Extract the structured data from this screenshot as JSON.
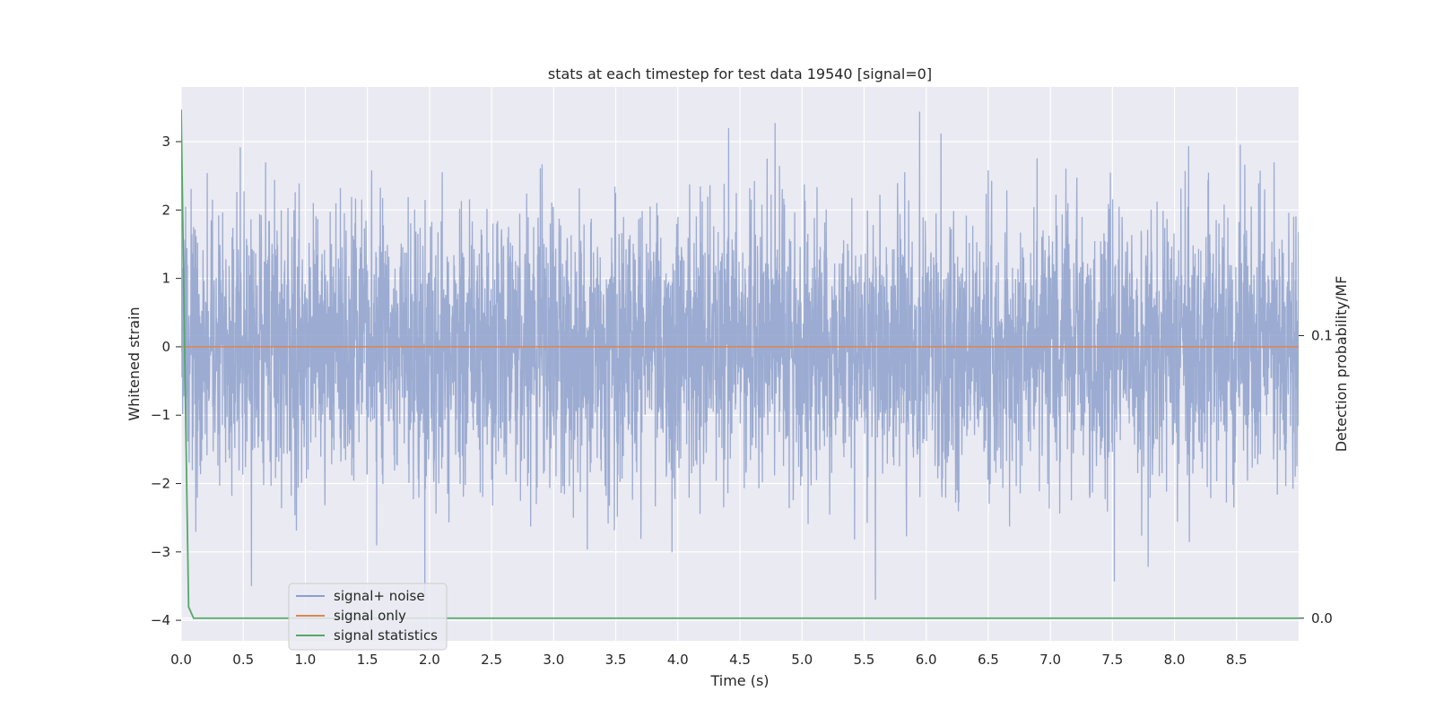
{
  "chart_data": {
    "type": "line",
    "title": "stats at each timestep for test data 19540 [signal=0]",
    "xlabel": "Time (s)",
    "ylabel": "Whitened strain",
    "ylabel_right": "Detection probability/MF",
    "xlim": [
      0.0,
      9.0
    ],
    "ylim": [
      -4.3,
      3.8
    ],
    "ylim_right": [
      -0.008,
      0.188
    ],
    "x_ticks": [
      0.0,
      0.5,
      1.0,
      1.5,
      2.0,
      2.5,
      3.0,
      3.5,
      4.0,
      4.5,
      5.0,
      5.5,
      6.0,
      6.5,
      7.0,
      7.5,
      8.0,
      8.5
    ],
    "x_tick_labels": [
      "0.0",
      "0.5",
      "1.0",
      "1.5",
      "2.0",
      "2.5",
      "3.0",
      "3.5",
      "4.0",
      "4.5",
      "5.0",
      "5.5",
      "6.0",
      "6.5",
      "7.0",
      "7.5",
      "8.0",
      "8.5"
    ],
    "y_ticks": [
      3,
      2,
      1,
      0,
      -1,
      -2,
      -3,
      -4
    ],
    "y_tick_labels": [
      "3",
      "2",
      "1",
      "0",
      "−1",
      "−2",
      "−3",
      "−4"
    ],
    "y_ticks_right": [
      0.1,
      0.0
    ],
    "y_tick_labels_right": [
      "0.1",
      "0.0"
    ],
    "grid": true,
    "legend_position": "lower-left",
    "series": [
      {
        "name": "signal+ noise",
        "axis": "left",
        "color": "#8da0cb",
        "opacity": 0.85,
        "description": "whitened noise, approx. Gaussian with std ~1, clipped to roughly [-4, 3.4]",
        "x_range": [
          0.0,
          9.0
        ],
        "std": 1.0,
        "ymin": -4.0,
        "ymax": 3.44,
        "sample_count": 4500
      },
      {
        "name": "signal only",
        "axis": "left",
        "color": "#dd8452",
        "x": [
          0.0,
          9.0
        ],
        "y": [
          0.0,
          0.0
        ]
      },
      {
        "name": "signal statistics",
        "axis": "right",
        "color": "#55a868",
        "x": [
          0.0,
          0.04,
          0.06,
          0.1,
          9.0
        ],
        "y": [
          0.18,
          0.06,
          0.004,
          0.0,
          0.0
        ]
      }
    ]
  }
}
